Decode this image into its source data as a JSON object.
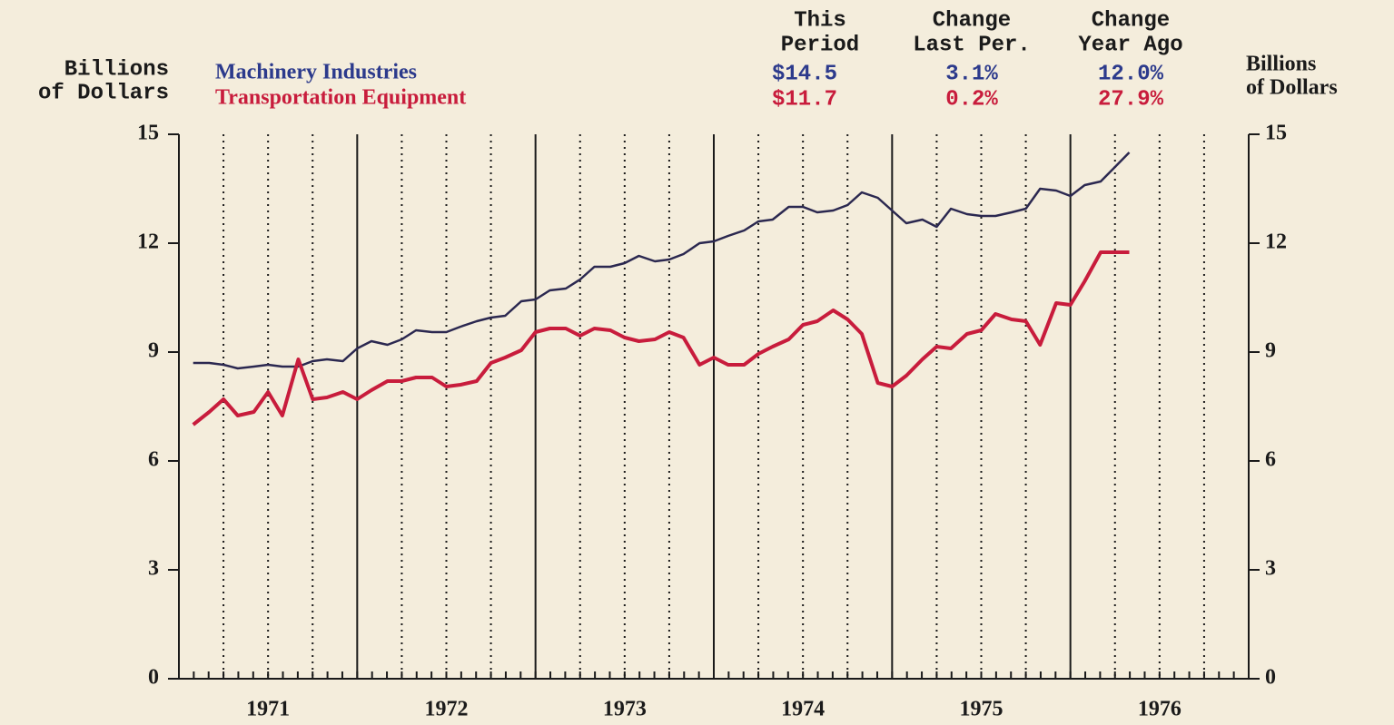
{
  "chart_data": {
    "type": "line",
    "y_label": [
      "Billions",
      "of Dollars"
    ],
    "y2_label": [
      "Billions",
      "of Dollars"
    ],
    "summary": {
      "columns": [
        [
          "This",
          "Period"
        ],
        [
          "Change",
          "Last Per."
        ],
        [
          "Change",
          "Year Ago"
        ]
      ],
      "rows": [
        [
          "$14.5",
          "3.1%",
          "12.0%"
        ],
        [
          "$11.7",
          "0.2%",
          "27.9%"
        ]
      ]
    },
    "x": [
      1971.08,
      1971.17,
      1971.25,
      1971.33,
      1971.42,
      1971.5,
      1971.58,
      1971.67,
      1971.75,
      1971.83,
      1971.92,
      1972,
      1972.08,
      1972.17,
      1972.25,
      1972.33,
      1972.42,
      1972.5,
      1972.58,
      1972.67,
      1972.75,
      1972.83,
      1972.92,
      1973,
      1973.08,
      1973.17,
      1973.25,
      1973.33,
      1973.42,
      1973.5,
      1973.58,
      1973.67,
      1973.75,
      1973.83,
      1973.92,
      1974,
      1974.08,
      1974.17,
      1974.25,
      1974.33,
      1974.42,
      1974.5,
      1974.58,
      1974.67,
      1974.75,
      1974.83,
      1974.92,
      1975,
      1975.08,
      1975.17,
      1975.25,
      1975.33,
      1975.42,
      1975.5,
      1975.58,
      1975.67,
      1975.75,
      1975.83,
      1975.92,
      1976,
      1976.08,
      1976.17,
      1976.25,
      1976.33
    ],
    "series": [
      {
        "name": "Machinery Industries",
        "color": "#2b2850",
        "text_color": "#2c3a8c",
        "values": [
          8.7,
          8.7,
          8.65,
          8.55,
          8.6,
          8.65,
          8.6,
          8.6,
          8.75,
          8.8,
          8.75,
          9.1,
          9.3,
          9.2,
          9.35,
          9.6,
          9.55,
          9.55,
          9.7,
          9.85,
          9.95,
          10.0,
          10.4,
          10.45,
          10.7,
          10.75,
          11.0,
          11.35,
          11.35,
          11.45,
          11.65,
          11.5,
          11.55,
          11.7,
          12.0,
          12.05,
          12.2,
          12.35,
          12.6,
          12.65,
          13.0,
          13.0,
          12.85,
          12.9,
          13.05,
          13.4,
          13.25,
          12.9,
          12.55,
          12.65,
          12.45,
          12.95,
          12.8,
          12.75,
          12.75,
          12.85,
          12.95,
          13.5,
          13.45,
          13.3,
          13.6,
          13.7,
          14.1,
          14.5
        ]
      },
      {
        "name": "Transportation Equipment",
        "color": "#c81c3c",
        "text_color": "#c81c3c",
        "values": [
          7.0,
          7.35,
          7.7,
          7.25,
          7.35,
          7.9,
          7.25,
          8.8,
          7.7,
          7.75,
          7.9,
          7.7,
          7.95,
          8.2,
          8.2,
          8.3,
          8.3,
          8.05,
          8.1,
          8.2,
          8.7,
          8.85,
          9.05,
          9.55,
          9.65,
          9.65,
          9.45,
          9.65,
          9.6,
          9.4,
          9.3,
          9.35,
          9.55,
          9.4,
          8.65,
          8.85,
          8.65,
          8.65,
          8.95,
          9.15,
          9.35,
          9.75,
          9.85,
          10.15,
          9.9,
          9.5,
          8.15,
          8.05,
          8.35,
          8.8,
          9.15,
          9.1,
          9.5,
          9.6,
          10.05,
          9.9,
          9.85,
          9.2,
          10.35,
          10.3,
          10.95,
          11.75,
          11.75,
          11.75
        ]
      }
    ],
    "xlim": [
      1971,
      1977
    ],
    "xticks": [
      {
        "value": 1971.5,
        "label": "1971"
      },
      {
        "value": 1972.5,
        "label": "1972"
      },
      {
        "value": 1973.5,
        "label": "1973"
      },
      {
        "value": 1974.5,
        "label": "1974"
      },
      {
        "value": 1975.5,
        "label": "1975"
      },
      {
        "value": 1976.5,
        "label": "1976"
      }
    ],
    "ylim": [
      0,
      15
    ],
    "yticks": [
      0,
      3,
      6,
      9,
      12,
      15
    ],
    "y2lim": [
      0,
      15
    ],
    "y2ticks": [
      0,
      3,
      6,
      9,
      12,
      15
    ]
  }
}
